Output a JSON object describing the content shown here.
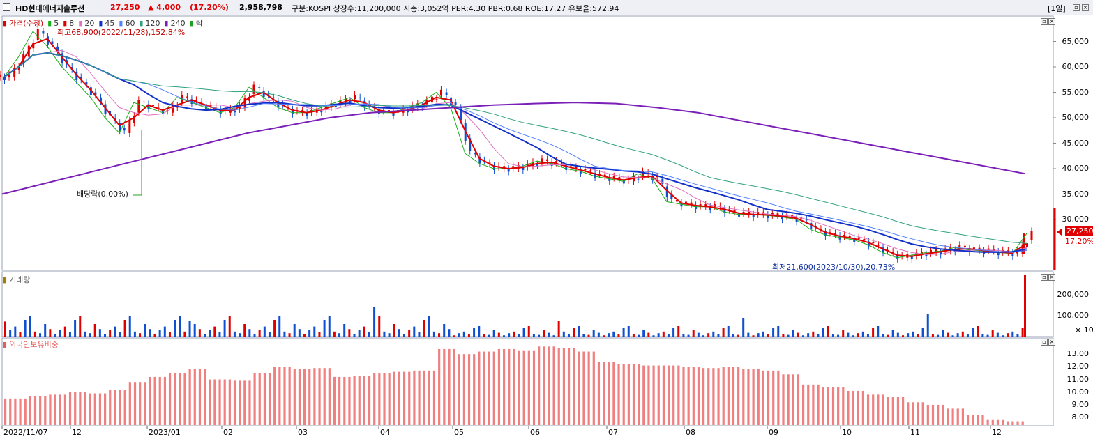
{
  "header": {
    "company": "HD현대에너지솔루션",
    "price": "27,250",
    "change": "▲ 4,000",
    "change_pct": "(17.20%)",
    "volume": "2,958,798",
    "stats": "구분:KOSPI  상장수:11,200,000  시총:3,052억  PER:4.30  PBR:0.68  ROE:17.27  유보율:572.94",
    "period_button": "[1일]"
  },
  "price_panel": {
    "legend": [
      {
        "label": "가격(수정)",
        "color": "#e00000"
      },
      {
        "label": "5",
        "color": "#18b018"
      },
      {
        "label": "8",
        "color": "#e00000"
      },
      {
        "label": "20",
        "color": "#e070c0"
      },
      {
        "label": "45",
        "color": "#1030c8"
      },
      {
        "label": "60",
        "color": "#5080ff"
      },
      {
        "label": "120",
        "color": "#30a080"
      },
      {
        "label": "240",
        "color": "#7a20b8"
      },
      {
        "label": "락",
        "color": "#20a020"
      }
    ],
    "high_annotation": "최고68,900(2022/11/28),152.84%",
    "low_annotation": "최저21,600(2023/10/30),20.73%",
    "dividend_annotation": "배당락(0.00%)",
    "last_price_tag": "27,250",
    "last_pct_tag": "17.20%"
  },
  "volume_panel": {
    "legend": "거래량",
    "unit": "× 10"
  },
  "foreign_panel": {
    "legend": "외국인보유비중"
  },
  "chart_data": [
    {
      "type": "candlestick",
      "title": "가격(수정)",
      "y_ticks": [
        30000,
        35000,
        40000,
        45000,
        50000,
        55000,
        60000,
        65000
      ],
      "y_tick_labels": [
        "30,000",
        "35,000",
        "40,000",
        "45,000",
        "50,000",
        "55,000",
        "60,000",
        "65,000"
      ],
      "x_ticks": [
        "2022/11/07",
        "12",
        "2023/01",
        "02",
        "03",
        "04",
        "05",
        "06",
        "07",
        "08",
        "09",
        "10",
        "11",
        "12"
      ],
      "close_series": [
        58000,
        62000,
        67000,
        64000,
        60000,
        57000,
        54000,
        50000,
        47000,
        53000,
        52000,
        51000,
        54000,
        53000,
        52000,
        51000,
        52000,
        56000,
        54000,
        52000,
        51000,
        51000,
        52000,
        53000,
        54000,
        52000,
        51000,
        51000,
        52000,
        53000,
        55000,
        52000,
        43000,
        41000,
        40000,
        40000,
        40500,
        41500,
        41000,
        40000,
        39500,
        38500,
        38000,
        37500,
        39000,
        38000,
        33500,
        33000,
        32500,
        32500,
        31500,
        31000,
        31000,
        30800,
        30500,
        30000,
        28000,
        27000,
        26500,
        26000,
        25000,
        23500,
        22500,
        23000,
        23500,
        23800,
        24500,
        24000,
        23800,
        23500,
        23300,
        27250
      ],
      "ma240": [
        35000,
        37000,
        39000,
        41000,
        43000,
        45000,
        47000,
        48500,
        50000,
        51000,
        51500,
        52000,
        52500,
        52800,
        53000,
        52800,
        52000,
        51000,
        49500,
        48000,
        46500,
        45000,
        43500,
        42000,
        40500,
        39000
      ],
      "ylim": [
        20000,
        70000
      ]
    },
    {
      "type": "bar",
      "title": "거래량",
      "y_ticks": [
        100000,
        200000
      ],
      "y_tick_labels": [
        "100,000",
        "200,000"
      ],
      "note": "last bar spike ≈ 295,880 (×10)"
    },
    {
      "type": "bar",
      "title": "외국인보유비중",
      "y_ticks": [
        8,
        9,
        10,
        11,
        12,
        13
      ],
      "y_tick_labels": [
        "8.00",
        "9.00",
        "10.00",
        "11.00",
        "12.00",
        "13.00"
      ],
      "ylim": [
        7.4,
        14.0
      ]
    }
  ]
}
